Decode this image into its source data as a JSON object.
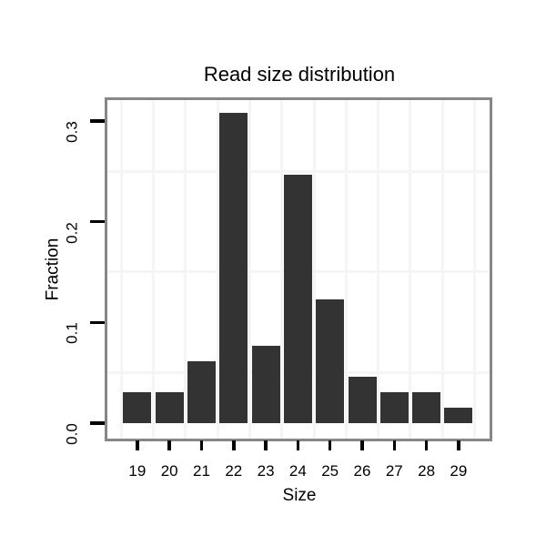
{
  "chart_data": {
    "type": "bar",
    "title": "Read size distribution",
    "xlabel": "Size",
    "ylabel": "Fraction",
    "categories": [
      "19",
      "20",
      "21",
      "22",
      "23",
      "24",
      "25",
      "26",
      "27",
      "28",
      "29"
    ],
    "values": [
      0.0308,
      0.0308,
      0.0615,
      0.3077,
      0.0769,
      0.2462,
      0.1231,
      0.0462,
      0.0308,
      0.0308,
      0.0154
    ],
    "ylim": [
      0,
      0.323
    ],
    "yticks": [
      0,
      0.1,
      0.2,
      0.3
    ],
    "ytick_labels": [
      "0.0",
      "0.1",
      "0.2",
      "0.3"
    ],
    "minor_gridlines_y": [
      0.05,
      0.15,
      0.25
    ],
    "grid": "minor gridlines only; vertical lines at category boundaries",
    "legend_position": "none",
    "colors": {
      "bar": "#333333",
      "panel_border": "#878787",
      "gridline": "#f5f5f5",
      "text": "#000000",
      "background": "#ffffff"
    }
  }
}
